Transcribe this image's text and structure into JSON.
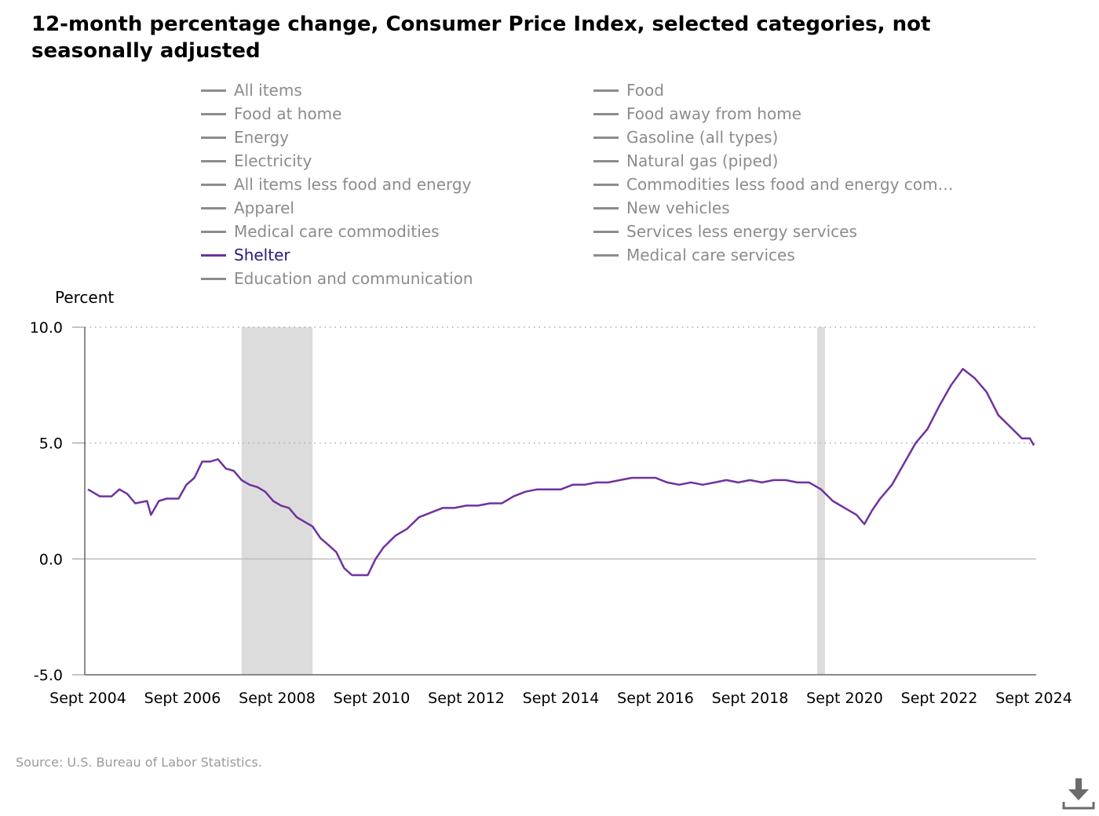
{
  "title": "12-month percentage change, Consumer Price Index, selected categories, not seasonally adjusted",
  "legend": [
    {
      "label": "All items",
      "active": false
    },
    {
      "label": "Food",
      "active": false
    },
    {
      "label": "Food at home",
      "active": false
    },
    {
      "label": "Food away from home",
      "active": false
    },
    {
      "label": "Energy",
      "active": false
    },
    {
      "label": "Gasoline (all types)",
      "active": false
    },
    {
      "label": "Electricity",
      "active": false
    },
    {
      "label": "Natural gas (piped)",
      "active": false
    },
    {
      "label": "All items less food and energy",
      "active": false
    },
    {
      "label": "Commodities less food and energy com…",
      "active": false
    },
    {
      "label": "Apparel",
      "active": false
    },
    {
      "label": "New vehicles",
      "active": false
    },
    {
      "label": "Medical care commodities",
      "active": false
    },
    {
      "label": "Services less energy services",
      "active": false
    },
    {
      "label": "Shelter",
      "active": true
    },
    {
      "label": "Medical care services",
      "active": false
    },
    {
      "label": "Education and communication",
      "active": false
    }
  ],
  "source": "Source: U.S. Bureau of Labor Statistics.",
  "icons": {
    "download": "download-icon"
  },
  "colors": {
    "series": "#6f32a0",
    "recession": "#dcdcdc",
    "inactive_legend": "#8c8c8c"
  },
  "chart_data": {
    "type": "line",
    "ylabel": "Percent",
    "ylim": [
      -5.0,
      10.0
    ],
    "yticks": [
      "10.0",
      "5.0",
      "0.0",
      "-5.0"
    ],
    "xticks": [
      "Sept 2004",
      "Sept 2006",
      "Sept 2008",
      "Sept 2010",
      "Sept 2012",
      "Sept 2014",
      "Sept 2016",
      "Sept 2018",
      "Sept 2020",
      "Sept 2022",
      "Sept 2024"
    ],
    "xrange": [
      "2004-09",
      "2024-09"
    ],
    "grid": "dotted at 5.0 and 10.0, solid at 0.0",
    "recessions": [
      {
        "start": "2007-12",
        "end": "2009-06"
      },
      {
        "start": "2020-02",
        "end": "2020-04"
      }
    ],
    "series": [
      {
        "name": "Shelter",
        "points": [
          [
            "2004-09",
            3.0
          ],
          [
            "2004-12",
            2.7
          ],
          [
            "2005-03",
            2.7
          ],
          [
            "2005-05",
            3.0
          ],
          [
            "2005-07",
            2.8
          ],
          [
            "2005-09",
            2.4
          ],
          [
            "2005-12",
            2.5
          ],
          [
            "2006-01",
            1.9
          ],
          [
            "2006-03",
            2.5
          ],
          [
            "2006-05",
            2.6
          ],
          [
            "2006-08",
            2.6
          ],
          [
            "2006-10",
            3.2
          ],
          [
            "2006-12",
            3.5
          ],
          [
            "2007-02",
            4.2
          ],
          [
            "2007-04",
            4.2
          ],
          [
            "2007-06",
            4.3
          ],
          [
            "2007-08",
            3.9
          ],
          [
            "2007-10",
            3.8
          ],
          [
            "2007-12",
            3.4
          ],
          [
            "2008-02",
            3.2
          ],
          [
            "2008-04",
            3.1
          ],
          [
            "2008-06",
            2.9
          ],
          [
            "2008-08",
            2.5
          ],
          [
            "2008-10",
            2.3
          ],
          [
            "2008-12",
            2.2
          ],
          [
            "2009-02",
            1.8
          ],
          [
            "2009-04",
            1.6
          ],
          [
            "2009-06",
            1.4
          ],
          [
            "2009-08",
            0.9
          ],
          [
            "2009-10",
            0.6
          ],
          [
            "2009-12",
            0.3
          ],
          [
            "2010-02",
            -0.4
          ],
          [
            "2010-04",
            -0.7
          ],
          [
            "2010-06",
            -0.7
          ],
          [
            "2010-08",
            -0.7
          ],
          [
            "2010-10",
            0.0
          ],
          [
            "2010-12",
            0.5
          ],
          [
            "2011-03",
            1.0
          ],
          [
            "2011-06",
            1.3
          ],
          [
            "2011-09",
            1.8
          ],
          [
            "2011-12",
            2.0
          ],
          [
            "2012-03",
            2.2
          ],
          [
            "2012-06",
            2.2
          ],
          [
            "2012-09",
            2.3
          ],
          [
            "2012-12",
            2.3
          ],
          [
            "2013-03",
            2.4
          ],
          [
            "2013-06",
            2.4
          ],
          [
            "2013-09",
            2.7
          ],
          [
            "2013-12",
            2.9
          ],
          [
            "2014-03",
            3.0
          ],
          [
            "2014-06",
            3.0
          ],
          [
            "2014-09",
            3.0
          ],
          [
            "2014-12",
            3.2
          ],
          [
            "2015-03",
            3.2
          ],
          [
            "2015-06",
            3.3
          ],
          [
            "2015-09",
            3.3
          ],
          [
            "2015-12",
            3.4
          ],
          [
            "2016-03",
            3.5
          ],
          [
            "2016-06",
            3.5
          ],
          [
            "2016-09",
            3.5
          ],
          [
            "2016-12",
            3.3
          ],
          [
            "2017-03",
            3.2
          ],
          [
            "2017-06",
            3.3
          ],
          [
            "2017-09",
            3.2
          ],
          [
            "2017-12",
            3.3
          ],
          [
            "2018-03",
            3.4
          ],
          [
            "2018-06",
            3.3
          ],
          [
            "2018-09",
            3.4
          ],
          [
            "2018-12",
            3.3
          ],
          [
            "2019-03",
            3.4
          ],
          [
            "2019-06",
            3.4
          ],
          [
            "2019-09",
            3.3
          ],
          [
            "2019-12",
            3.3
          ],
          [
            "2020-03",
            3.0
          ],
          [
            "2020-06",
            2.5
          ],
          [
            "2020-09",
            2.2
          ],
          [
            "2020-12",
            1.9
          ],
          [
            "2021-02",
            1.5
          ],
          [
            "2021-04",
            2.1
          ],
          [
            "2021-06",
            2.6
          ],
          [
            "2021-09",
            3.2
          ],
          [
            "2021-12",
            4.1
          ],
          [
            "2022-03",
            5.0
          ],
          [
            "2022-06",
            5.6
          ],
          [
            "2022-09",
            6.6
          ],
          [
            "2022-12",
            7.5
          ],
          [
            "2023-03",
            8.2
          ],
          [
            "2023-06",
            7.8
          ],
          [
            "2023-09",
            7.2
          ],
          [
            "2023-12",
            6.2
          ],
          [
            "2024-03",
            5.7
          ],
          [
            "2024-06",
            5.2
          ],
          [
            "2024-08",
            5.2
          ],
          [
            "2024-09",
            4.9
          ]
        ]
      }
    ]
  }
}
